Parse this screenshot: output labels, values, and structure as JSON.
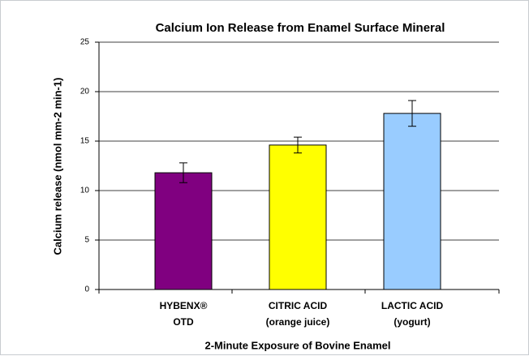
{
  "chart_data": {
    "type": "bar",
    "title": "Calcium Ion Release from Enamel Surface Mineral",
    "x_label": "2-Minute Exposure of Bovine Enamel",
    "y_label": "Calcium release (nmol mm-2 min-1)",
    "categories": [
      [
        "HYBENX®",
        "OTD"
      ],
      [
        "CITRIC ACID",
        "(orange juice)"
      ],
      [
        "LACTIC ACID",
        "(yogurt)"
      ]
    ],
    "values": [
      11.8,
      14.6,
      17.8
    ],
    "errors": [
      1.0,
      0.8,
      1.3
    ],
    "colors": [
      "#800080",
      "#ffff00",
      "#99ccff"
    ],
    "ylim": [
      0,
      25
    ],
    "yticks": [
      0,
      5,
      10,
      15,
      20,
      25
    ],
    "grid": true
  }
}
